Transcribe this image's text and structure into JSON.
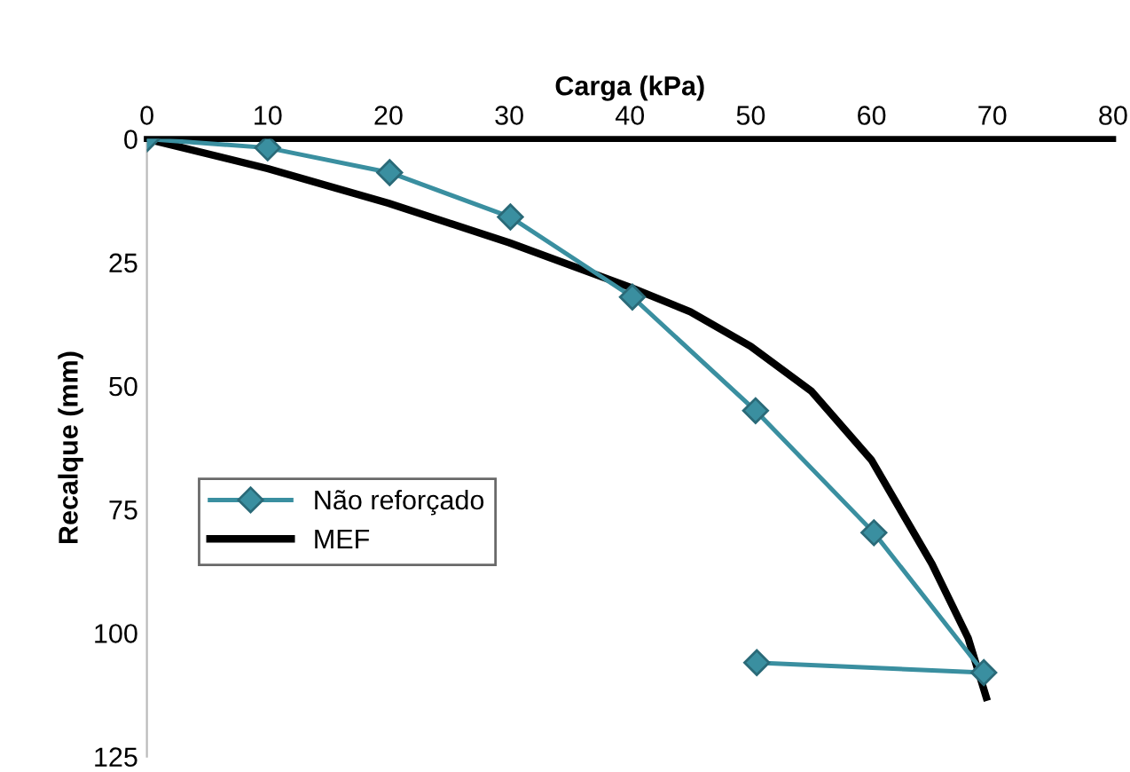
{
  "chart_data": {
    "type": "line",
    "xlabel": "Carga (kPa)",
    "ylabel": "Recalque (mm)",
    "xlim": [
      0,
      80
    ],
    "xticks": [
      0,
      10,
      20,
      30,
      40,
      50,
      60,
      70,
      80
    ],
    "ylim": [
      125,
      0
    ],
    "yticks": [
      0,
      25,
      50,
      75,
      100,
      125
    ],
    "grid": false,
    "legend": "left",
    "series": [
      {
        "name": "Não reforçado",
        "color": "#3a8fa0",
        "marker": "diamond",
        "x": [
          0,
          10,
          20.1,
          30.1,
          40.2,
          50.4,
          60.2,
          69.3,
          50.5
        ],
        "values": [
          0,
          1.8,
          6.8,
          15.8,
          32,
          55,
          79.7,
          108,
          106
        ]
      },
      {
        "name": "MEF",
        "color": "#000000",
        "marker": "none",
        "x": [
          0,
          10,
          20,
          30,
          40,
          45,
          50,
          55,
          60,
          65,
          68,
          69.5
        ],
        "values": [
          0,
          6,
          13,
          21,
          30,
          35,
          42,
          51,
          65,
          86,
          101,
          113
        ]
      }
    ]
  }
}
